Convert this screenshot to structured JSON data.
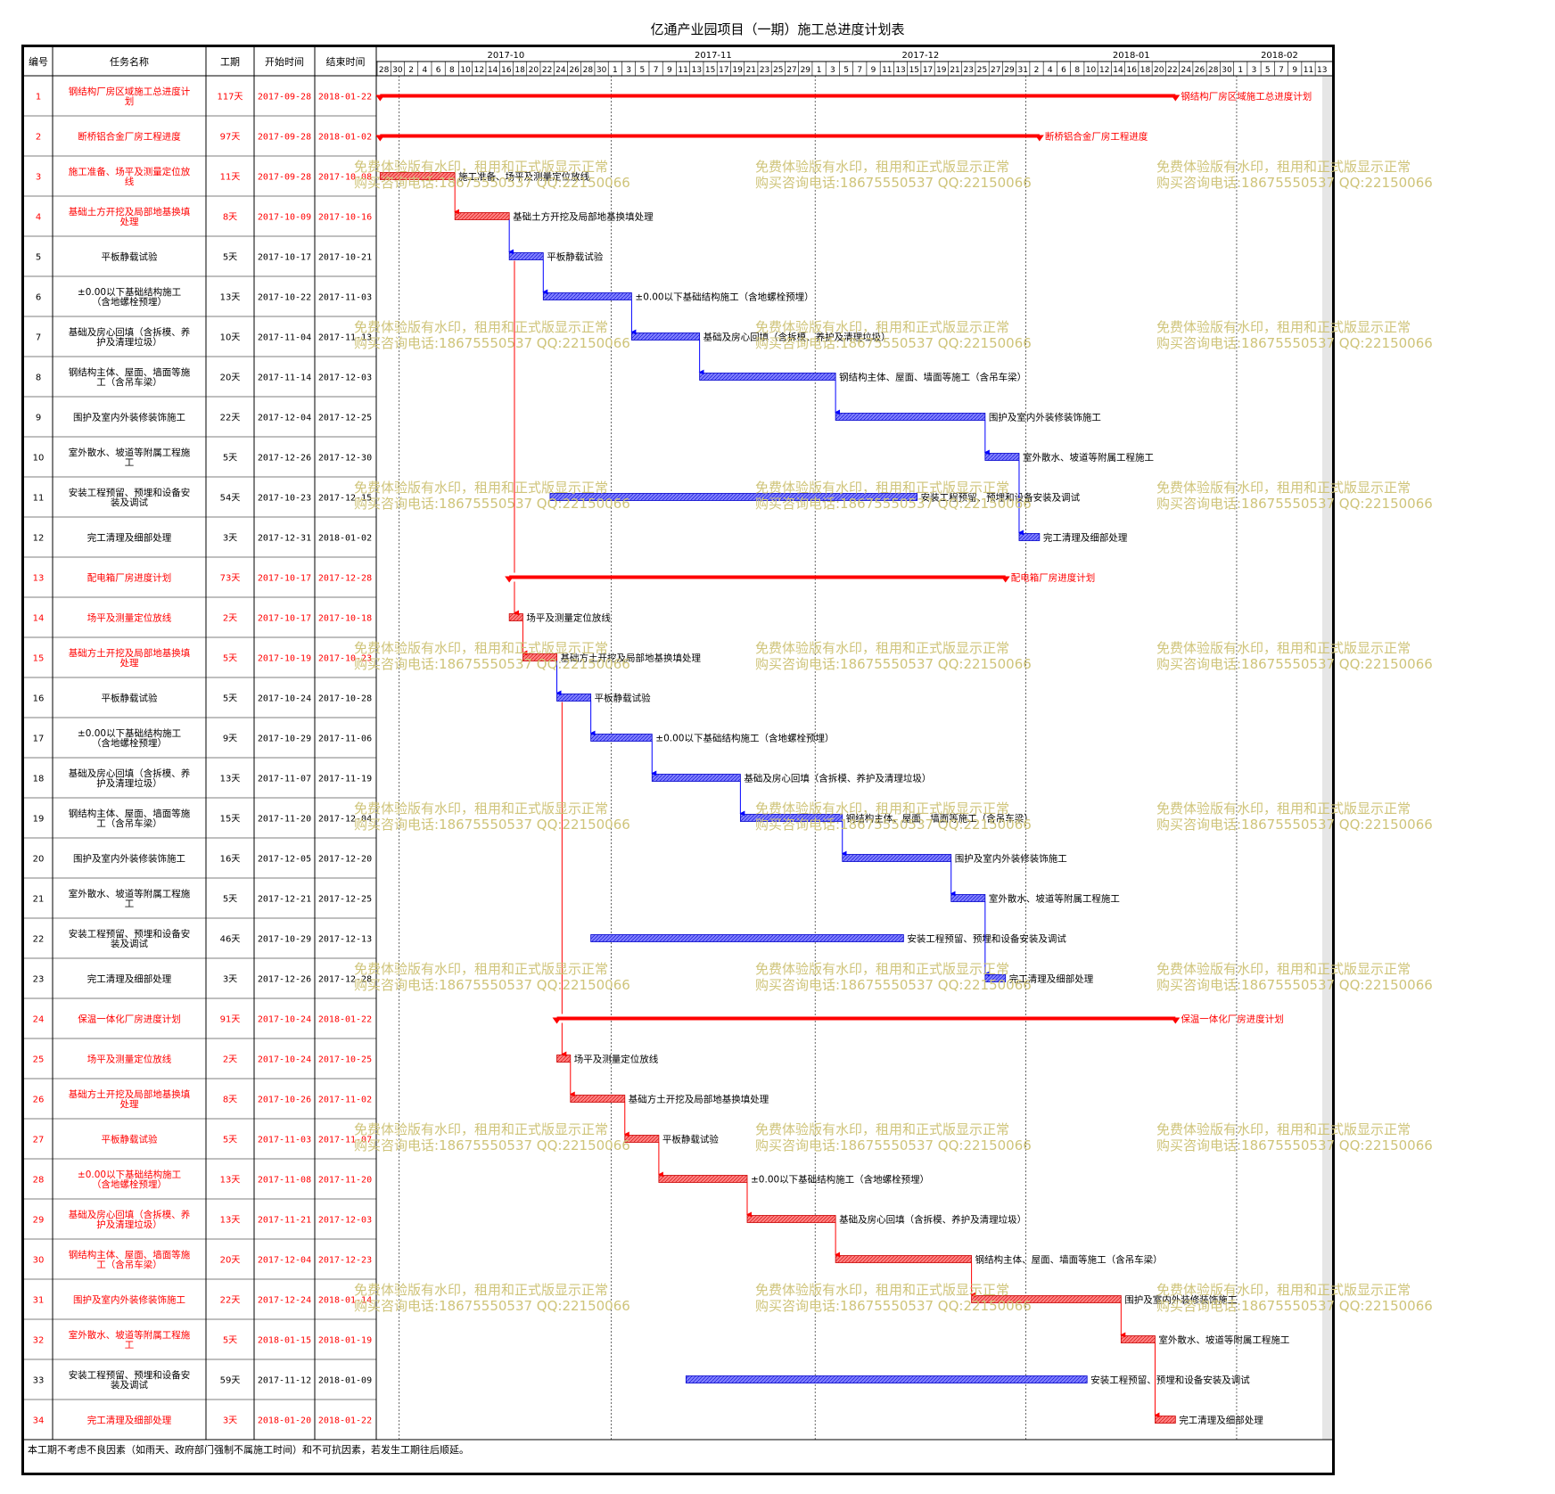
{
  "title": "亿通产业园项目（一期）施工总进度计划表",
  "footer_note": "本工期不考虑不良因素（如雨天、政府部门强制不属施工时间）和不可抗因素，若发生工期往后顺延。",
  "watermark": {
    "line1": "免费体验版有水印，租用和正式版显示正常",
    "line2": "购买咨询电话:18675550537 QQ:22150066",
    "color": "#cfc47a"
  },
  "colors": {
    "summary": "#ff0000",
    "red_task": "#ff8080",
    "red_task_border": "#cc0000",
    "blue_task": "#8080ff",
    "blue_task_border": "#0000cc",
    "red_text": "#ff0000",
    "black_text": "#000000"
  },
  "columns": [
    "编号",
    "任务名称",
    "工期",
    "开始时间",
    "结束时间"
  ],
  "timeline": {
    "months": [
      "2017-10",
      "2017-11",
      "2017-12",
      "2018-01",
      "2018-02"
    ],
    "day_ticks": [
      "28",
      "30",
      "2",
      "4",
      "6",
      "8",
      "10",
      "12",
      "14",
      "16",
      "18",
      "20",
      "22",
      "24",
      "26",
      "28",
      "30",
      "1",
      "3",
      "5",
      "7",
      "9",
      "11",
      "13",
      "15",
      "17",
      "19",
      "21",
      "23",
      "25",
      "27",
      "29",
      "1",
      "3",
      "5",
      "7",
      "9",
      "11",
      "13",
      "15",
      "17",
      "19",
      "21",
      "23",
      "25",
      "27",
      "29",
      "31",
      "2",
      "4",
      "6",
      "8",
      "10",
      "12",
      "14",
      "16",
      "18",
      "20",
      "22",
      "24",
      "26",
      "28",
      "30",
      "1",
      "3",
      "5",
      "7",
      "9",
      "11",
      "13"
    ]
  },
  "chart_data": {
    "type": "gantt",
    "title": "亿通产业园项目（一期）施工总进度计划表",
    "x_range": [
      "2017-09-27",
      "2018-02-14"
    ],
    "tasks": [
      {
        "id": "1",
        "name": "钢结构厂房区域施工总进度计划",
        "duration": "117天",
        "start": "2017-09-28",
        "end": "2018-01-22",
        "kind": "summary",
        "color": "red",
        "label": "钢结构厂房区域施工总进度计划"
      },
      {
        "id": "2",
        "name": "断桥铝合金厂房工程进度",
        "duration": "97天",
        "start": "2017-09-28",
        "end": "2018-01-02",
        "kind": "summary",
        "color": "red",
        "label": "断桥铝合金厂房工程进度"
      },
      {
        "id": "3",
        "name": "施工准备、场平及测量定位放线",
        "duration": "11天",
        "start": "2017-09-28",
        "end": "2017-10-08",
        "kind": "task",
        "color": "red",
        "label": "施工准备、场平及测量定位放线"
      },
      {
        "id": "4",
        "name": "基础土方开挖及局部地基换填处理",
        "duration": "8天",
        "start": "2017-10-09",
        "end": "2017-10-16",
        "kind": "task",
        "color": "red",
        "label": "基础土方开挖及局部地基换填处理"
      },
      {
        "id": "5",
        "name": "平板静载试验",
        "duration": "5天",
        "start": "2017-10-17",
        "end": "2017-10-21",
        "kind": "task",
        "color": "blue",
        "label": "平板静载试验"
      },
      {
        "id": "6",
        "name": "±0.00以下基础结构施工（含地螺栓预埋）",
        "duration": "13天",
        "start": "2017-10-22",
        "end": "2017-11-03",
        "kind": "task",
        "color": "blue",
        "label": "±0.00以下基础结构施工（含地螺栓预埋）"
      },
      {
        "id": "7",
        "name": "基础及房心回填（含拆模、养护及清理垃圾）",
        "duration": "10天",
        "start": "2017-11-04",
        "end": "2017-11-13",
        "kind": "task",
        "color": "blue",
        "label": "基础及房心回填（含拆模、养护及清理垃圾）"
      },
      {
        "id": "8",
        "name": "钢结构主体、屋面、墙面等施工（含吊车梁）",
        "duration": "20天",
        "start": "2017-11-14",
        "end": "2017-12-03",
        "kind": "task",
        "color": "blue",
        "label": "钢结构主体、屋面、墙面等施工（含吊车梁）"
      },
      {
        "id": "9",
        "name": "围护及室内外装修装饰施工",
        "duration": "22天",
        "start": "2017-12-04",
        "end": "2017-12-25",
        "kind": "task",
        "color": "blue",
        "label": "围护及室内外装修装饰施工"
      },
      {
        "id": "10",
        "name": "室外散水、坡道等附属工程施工",
        "duration": "5天",
        "start": "2017-12-26",
        "end": "2017-12-30",
        "kind": "task",
        "color": "blue",
        "label": "室外散水、坡道等附属工程施工"
      },
      {
        "id": "11",
        "name": "安装工程预留、预埋和设备安装及调试",
        "duration": "54天",
        "start": "2017-10-23",
        "end": "2017-12-15",
        "kind": "task",
        "color": "blue",
        "label": "安装工程预留、预埋和设备安装及调试"
      },
      {
        "id": "12",
        "name": "完工清理及细部处理",
        "duration": "3天",
        "start": "2017-12-31",
        "end": "2018-01-02",
        "kind": "task",
        "color": "blue",
        "label": "完工清理及细部处理"
      },
      {
        "id": "13",
        "name": "配电箱厂房进度计划",
        "duration": "73天",
        "start": "2017-10-17",
        "end": "2017-12-28",
        "kind": "summary",
        "color": "red",
        "label": "配电箱厂房进度计划"
      },
      {
        "id": "14",
        "name": "场平及测量定位放线",
        "duration": "2天",
        "start": "2017-10-17",
        "end": "2017-10-18",
        "kind": "task",
        "color": "red",
        "label": "场平及测量定位放线"
      },
      {
        "id": "15",
        "name": "基础方土开挖及局部地基换填处理",
        "duration": "5天",
        "start": "2017-10-19",
        "end": "2017-10-23",
        "kind": "task",
        "color": "red",
        "label": "基础方土开挖及局部地基换填处理"
      },
      {
        "id": "16",
        "name": "平板静载试验",
        "duration": "5天",
        "start": "2017-10-24",
        "end": "2017-10-28",
        "kind": "task",
        "color": "blue",
        "label": "平板静载试验"
      },
      {
        "id": "17",
        "name": "±0.00以下基础结构施工（含地螺栓预埋）",
        "duration": "9天",
        "start": "2017-10-29",
        "end": "2017-11-06",
        "kind": "task",
        "color": "blue",
        "label": "±0.00以下基础结构施工（含地螺栓预埋）"
      },
      {
        "id": "18",
        "name": "基础及房心回填（含拆模、养护及清理垃圾）",
        "duration": "13天",
        "start": "2017-11-07",
        "end": "2017-11-19",
        "kind": "task",
        "color": "blue",
        "label": "基础及房心回填（含拆模、养护及清理垃圾）"
      },
      {
        "id": "19",
        "name": "钢结构主体、屋面、墙面等施工（含吊车梁）",
        "duration": "15天",
        "start": "2017-11-20",
        "end": "2017-12-04",
        "kind": "task",
        "color": "blue",
        "label": "钢结构主体、屋面、墙面等施工（含吊车梁）"
      },
      {
        "id": "20",
        "name": "围护及室内外装修装饰施工",
        "duration": "16天",
        "start": "2017-12-05",
        "end": "2017-12-20",
        "kind": "task",
        "color": "blue",
        "label": "围护及室内外装修装饰施工"
      },
      {
        "id": "21",
        "name": "室外散水、坡道等附属工程施工",
        "duration": "5天",
        "start": "2017-12-21",
        "end": "2017-12-25",
        "kind": "task",
        "color": "blue",
        "label": "室外散水、坡道等附属工程施工"
      },
      {
        "id": "22",
        "name": "安装工程预留、预埋和设备安装及调试",
        "duration": "46天",
        "start": "2017-10-29",
        "end": "2017-12-13",
        "kind": "task",
        "color": "blue",
        "label": "安装工程预留、预埋和设备安装及调试"
      },
      {
        "id": "23",
        "name": "完工清理及细部处理",
        "duration": "3天",
        "start": "2017-12-26",
        "end": "2017-12-28",
        "kind": "task",
        "color": "blue",
        "label": "完工清理及细部处理"
      },
      {
        "id": "24",
        "name": "保温一体化厂房进度计划",
        "duration": "91天",
        "start": "2017-10-24",
        "end": "2018-01-22",
        "kind": "summary",
        "color": "red",
        "label": "保温一体化厂房进度计划"
      },
      {
        "id": "25",
        "name": "场平及测量定位放线",
        "duration": "2天",
        "start": "2017-10-24",
        "end": "2017-10-25",
        "kind": "task",
        "color": "red",
        "label": "场平及测量定位放线"
      },
      {
        "id": "26",
        "name": "基础方土开挖及局部地基换填处理",
        "duration": "8天",
        "start": "2017-10-26",
        "end": "2017-11-02",
        "kind": "task",
        "color": "red",
        "label": "基础方土开挖及局部地基换填处理"
      },
      {
        "id": "27",
        "name": "平板静载试验",
        "duration": "5天",
        "start": "2017-11-03",
        "end": "2017-11-07",
        "kind": "task",
        "color": "red",
        "label": "平板静载试验"
      },
      {
        "id": "28",
        "name": "±0.00以下基础结构施工（含地螺栓预埋）",
        "duration": "13天",
        "start": "2017-11-08",
        "end": "2017-11-20",
        "kind": "task",
        "color": "red",
        "label": "±0.00以下基础结构施工（含地螺栓预埋）"
      },
      {
        "id": "29",
        "name": "基础及房心回填（含拆模、养护及清理垃圾）",
        "duration": "13天",
        "start": "2017-11-21",
        "end": "2017-12-03",
        "kind": "task",
        "color": "red",
        "label": "基础及房心回填（含拆模、养护及清理垃圾）"
      },
      {
        "id": "30",
        "name": "钢结构主体、屋面、墙面等施工（含吊车梁）",
        "duration": "20天",
        "start": "2017-12-04",
        "end": "2017-12-23",
        "kind": "task",
        "color": "red",
        "label": "钢结构主体、屋面、墙面等施工（含吊车梁）"
      },
      {
        "id": "31",
        "name": "围护及室内外装修装饰施工",
        "duration": "22天",
        "start": "2017-12-24",
        "end": "2018-01-14",
        "kind": "task",
        "color": "red",
        "label": "围护及室内外装修装饰施工"
      },
      {
        "id": "32",
        "name": "室外散水、坡道等附属工程施工",
        "duration": "5天",
        "start": "2018-01-15",
        "end": "2018-01-19",
        "kind": "task",
        "color": "red",
        "label": "室外散水、坡道等附属工程施工"
      },
      {
        "id": "33",
        "name": "安装工程预留、预埋和设备安装及调试",
        "duration": "59天",
        "start": "2017-11-12",
        "end": "2018-01-09",
        "kind": "task",
        "color": "blue",
        "label": "安装工程预留、预埋和设备安装及调试"
      },
      {
        "id": "34",
        "name": "完工清理及细部处理",
        "duration": "3天",
        "start": "2018-01-20",
        "end": "2018-01-22",
        "kind": "task",
        "color": "red",
        "label": "完工清理及细部处理"
      }
    ],
    "dependencies": [
      [
        "3",
        "4"
      ],
      [
        "4",
        "5"
      ],
      [
        "5",
        "6"
      ],
      [
        "6",
        "7"
      ],
      [
        "7",
        "8"
      ],
      [
        "8",
        "9"
      ],
      [
        "9",
        "10"
      ],
      [
        "10",
        "12"
      ],
      [
        "14",
        "15"
      ],
      [
        "15",
        "16"
      ],
      [
        "16",
        "17"
      ],
      [
        "17",
        "18"
      ],
      [
        "18",
        "19"
      ],
      [
        "19",
        "20"
      ],
      [
        "20",
        "21"
      ],
      [
        "21",
        "23"
      ],
      [
        "25",
        "26"
      ],
      [
        "26",
        "27"
      ],
      [
        "27",
        "28"
      ],
      [
        "28",
        "29"
      ],
      [
        "29",
        "30"
      ],
      [
        "30",
        "31"
      ],
      [
        "31",
        "32"
      ],
      [
        "32",
        "34"
      ]
    ]
  }
}
